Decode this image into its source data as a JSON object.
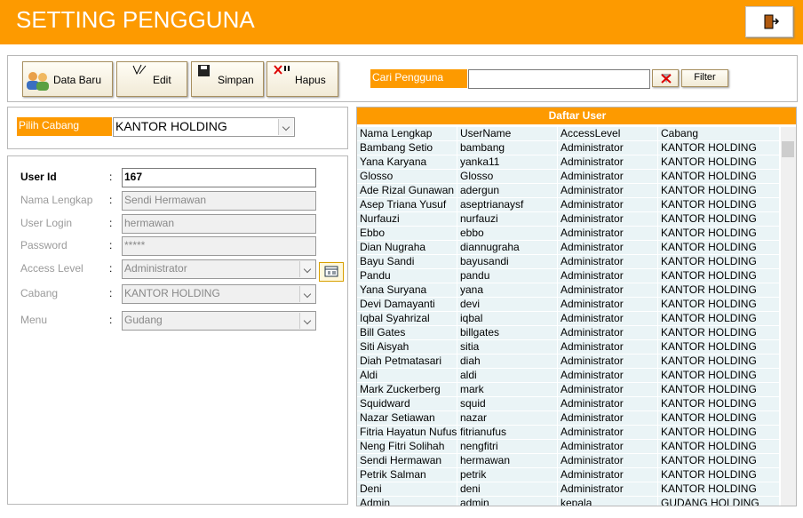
{
  "header": {
    "title": "SETTING PENGGUNA"
  },
  "toolbar": {
    "buttons": [
      "Data Baru",
      "Edit",
      "Simpan",
      "Hapus"
    ],
    "search_label": "Cari Pengguna",
    "filter": "Filter"
  },
  "branch": {
    "label": "Pilih Cabang",
    "value": "KANTOR HOLDING"
  },
  "form": {
    "separator": ":",
    "fields": [
      {
        "label": "User Id",
        "value": "167"
      },
      {
        "label": "Nama Lengkap",
        "value": "Sendi Hermawan"
      },
      {
        "label": "User Login",
        "value": "hermawan"
      },
      {
        "label": "Password",
        "value": "*****"
      },
      {
        "label": "Access Level",
        "value": "Administrator"
      },
      {
        "label": "Cabang",
        "value": "KANTOR HOLDING"
      },
      {
        "label": "Menu",
        "value": "Gudang"
      }
    ]
  },
  "table": {
    "title": "Daftar User",
    "columns": [
      "Nama Lengkap",
      "UserName",
      "AccessLevel",
      "Cabang"
    ],
    "rows": [
      [
        "Bambang Setio",
        "bambang",
        "Administrator",
        "KANTOR HOLDING"
      ],
      [
        "Yana Karyana",
        "yanka11",
        "Administrator",
        "KANTOR HOLDING"
      ],
      [
        "Glosso",
        "Glosso",
        "Administrator",
        "KANTOR HOLDING"
      ],
      [
        "Ade Rizal Gunawan",
        "adergun",
        "Administrator",
        "KANTOR HOLDING"
      ],
      [
        "Asep Triana Yusuf",
        "aseptrianaysf",
        "Administrator",
        "KANTOR HOLDING"
      ],
      [
        "Nurfauzi",
        "nurfauzi",
        "Administrator",
        "KANTOR HOLDING"
      ],
      [
        "Ebbo",
        "ebbo",
        "Administrator",
        "KANTOR HOLDING"
      ],
      [
        "Dian Nugraha",
        "diannugraha",
        "Administrator",
        "KANTOR HOLDING"
      ],
      [
        "Bayu Sandi",
        "bayusandi",
        "Administrator",
        "KANTOR HOLDING"
      ],
      [
        "Pandu",
        "pandu",
        "Administrator",
        "KANTOR HOLDING"
      ],
      [
        "Yana Suryana",
        "yana",
        "Administrator",
        "KANTOR HOLDING"
      ],
      [
        "Devi Damayanti",
        "devi",
        "Administrator",
        "KANTOR HOLDING"
      ],
      [
        "Iqbal Syahrizal",
        "iqbal",
        "Administrator",
        "KANTOR HOLDING"
      ],
      [
        "Bill Gates",
        "billgates",
        "Administrator",
        "KANTOR HOLDING"
      ],
      [
        "Siti Aisyah",
        "sitia",
        "Administrator",
        "KANTOR HOLDING"
      ],
      [
        "Diah Petmatasari",
        "diah",
        "Administrator",
        "KANTOR HOLDING"
      ],
      [
        "Aldi",
        "aldi",
        "Administrator",
        "KANTOR HOLDING"
      ],
      [
        "Mark Zuckerberg",
        "mark",
        "Administrator",
        "KANTOR HOLDING"
      ],
      [
        "Squidward",
        "squid",
        "Administrator",
        "KANTOR HOLDING"
      ],
      [
        "Nazar Setiawan",
        "nazar",
        "Administrator",
        "KANTOR HOLDING"
      ],
      [
        "Fitria Hayatun Nufus",
        "fitrianufus",
        "Administrator",
        "KANTOR HOLDING"
      ],
      [
        "Neng Fitri Solihah",
        "nengfitri",
        "Administrator",
        "KANTOR HOLDING"
      ],
      [
        "Sendi Hermawan",
        "hermawan",
        "Administrator",
        "KANTOR HOLDING"
      ],
      [
        "Petrik Salman",
        "petrik",
        "Administrator",
        "KANTOR HOLDING"
      ],
      [
        "Deni",
        "deni",
        "Administrator",
        "KANTOR HOLDING"
      ],
      [
        "Admin",
        "admin",
        "kepala",
        "GUDANG HOLDING"
      ]
    ]
  }
}
